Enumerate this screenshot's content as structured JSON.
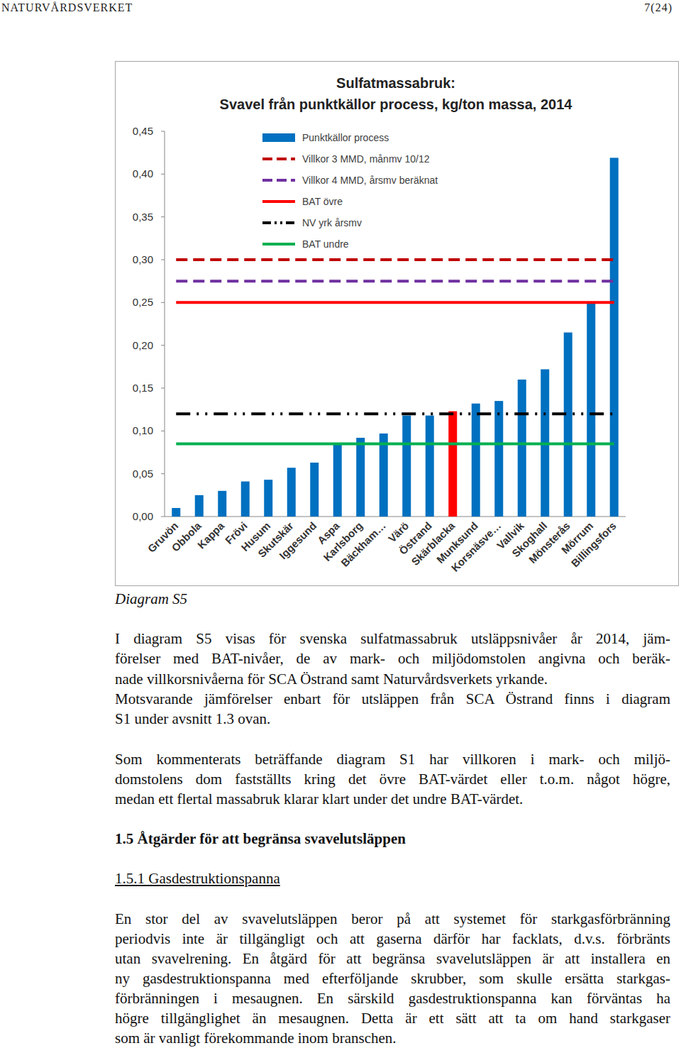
{
  "header": {
    "org": "NATURVÅRDSVERKET",
    "page": "7(24)"
  },
  "chart_data": {
    "type": "bar",
    "title": "Sulfatmassabruk:",
    "subtitle": "Svavel från punktkällor process, kg/ton massa, 2014",
    "categories": [
      "Gruvön",
      "Obbola",
      "Kappa",
      "Frövi",
      "Husum",
      "Skutskär",
      "Iggesund",
      "Aspa",
      "Karlsborg",
      "Bäckham…",
      "Värö",
      "Östrand",
      "Skärblacka",
      "Munksund",
      "Korsnäsve…",
      "Vallvik",
      "Skoghall",
      "Mönsterås",
      "Mörrum",
      "Billingsfors"
    ],
    "series": [
      {
        "name": "Punktkällor process",
        "type": "bar",
        "color": "#0070c0",
        "colors": [
          "#0070c0",
          "#0070c0",
          "#0070c0",
          "#0070c0",
          "#0070c0",
          "#0070c0",
          "#0070c0",
          "#0070c0",
          "#0070c0",
          "#0070c0",
          "#0070c0",
          "#0070c0",
          "#ff0000",
          "#0070c0",
          "#0070c0",
          "#0070c0",
          "#0070c0",
          "#0070c0",
          "#0070c0",
          "#0070c0"
        ],
        "values": [
          0.01,
          0.025,
          0.03,
          0.041,
          0.043,
          0.057,
          0.063,
          0.084,
          0.092,
          0.097,
          0.118,
          0.118,
          0.123,
          0.132,
          0.135,
          0.16,
          0.172,
          0.215,
          0.249,
          0.419
        ]
      },
      {
        "name": "Villkor 3 MMD, månmv 10/12",
        "type": "line",
        "color": "#c00000",
        "line_style": "dashed",
        "values": [
          0.3,
          0.3,
          0.3,
          0.3,
          0.3,
          0.3,
          0.3,
          0.3,
          0.3,
          0.3,
          0.3,
          0.3,
          0.3,
          0.3,
          0.3,
          0.3,
          0.3,
          0.3,
          0.3,
          0.3
        ]
      },
      {
        "name": "Villkor 4 MMD, årsmv beräknat",
        "type": "line",
        "color": "#7030a0",
        "line_style": "dashed",
        "values": [
          0.275,
          0.275,
          0.275,
          0.275,
          0.275,
          0.275,
          0.275,
          0.275,
          0.275,
          0.275,
          0.275,
          0.275,
          0.275,
          0.275,
          0.275,
          0.275,
          0.275,
          0.275,
          0.275,
          0.275
        ]
      },
      {
        "name": "BAT övre",
        "type": "line",
        "color": "#ff0000",
        "line_style": "solid",
        "values": [
          0.25,
          0.25,
          0.25,
          0.25,
          0.25,
          0.25,
          0.25,
          0.25,
          0.25,
          0.25,
          0.25,
          0.25,
          0.25,
          0.25,
          0.25,
          0.25,
          0.25,
          0.25,
          0.25,
          0.25
        ]
      },
      {
        "name": "NV yrk årsmv",
        "type": "line",
        "color": "#000000",
        "line_style": "dash-dot-dot",
        "values": [
          0.12,
          0.12,
          0.12,
          0.12,
          0.12,
          0.12,
          0.12,
          0.12,
          0.12,
          0.12,
          0.12,
          0.12,
          0.12,
          0.12,
          0.12,
          0.12,
          0.12,
          0.12,
          0.12,
          0.12
        ]
      },
      {
        "name": "BAT undre",
        "type": "line",
        "color": "#00b050",
        "line_style": "solid",
        "values": [
          0.085,
          0.085,
          0.085,
          0.085,
          0.085,
          0.085,
          0.085,
          0.085,
          0.085,
          0.085,
          0.085,
          0.085,
          0.085,
          0.085,
          0.085,
          0.085,
          0.085,
          0.085,
          0.085,
          0.085
        ]
      }
    ],
    "ylim": [
      0,
      0.45
    ],
    "yticks": [
      {
        "value": 0,
        "label": "0,00"
      },
      {
        "value": 0.05,
        "label": "0,05"
      },
      {
        "value": 0.1,
        "label": "0,10"
      },
      {
        "value": 0.15,
        "label": "0,15"
      },
      {
        "value": 0.2,
        "label": "0,20"
      },
      {
        "value": 0.25,
        "label": "0,25"
      },
      {
        "value": 0.3,
        "label": "0,30"
      },
      {
        "value": 0.35,
        "label": "0,35"
      },
      {
        "value": 0.4,
        "label": "0,40"
      },
      {
        "value": 0.45,
        "label": "0,45"
      }
    ],
    "grid": false,
    "legend": "top-left"
  },
  "caption": "Diagram S5",
  "paragraphs": [
    [
      "I diagram S5 visas för svenska sulfatmassabruk utsläppsnivåer år 2014, jäm-",
      "förelser med BAT-nivåer, de av mark- och miljödomstolen angivna och beräk-",
      "nade villkorsnivåerna för SCA Östrand samt Naturvårdsverkets yrkande.",
      "Motsvarande jämförelser enbart för utsläppen från SCA Östrand finns i diagram",
      "S1 under avsnitt 1.3 ovan."
    ],
    [
      "Som kommenterats beträffande diagram S1 har villkoren i mark- och miljö-",
      "domstolens dom fastställts kring det övre BAT-värdet eller t.o.m. något högre,",
      "medan ett flertal massabruk klarar klart under det undre BAT-värdet."
    ],
    [
      "En stor del av svavelutsläppen beror på att systemet för starkgasförbränning",
      "periodvis inte är tillgängligt och att gaserna därför har facklats, d.v.s. förbränts",
      "utan svavelrening. En åtgärd för att begränsa svavelutsläppen är att installera en",
      "ny gasdestruktionspanna med efterföljande skrubber, som skulle ersätta starkgas-",
      "förbränningen i mesaugnen. En särskild gasdestruktionspanna kan förväntas ha",
      "högre tillgänglighet än mesaugnen. Detta är ett sätt att ta om hand starkgaser",
      "som är vanligt förekommande inom branschen."
    ]
  ],
  "heading": "1.5 Åtgärder för att begränsa svavelutsläppen",
  "subheading": "1.5.1 Gasdestruktionspanna"
}
